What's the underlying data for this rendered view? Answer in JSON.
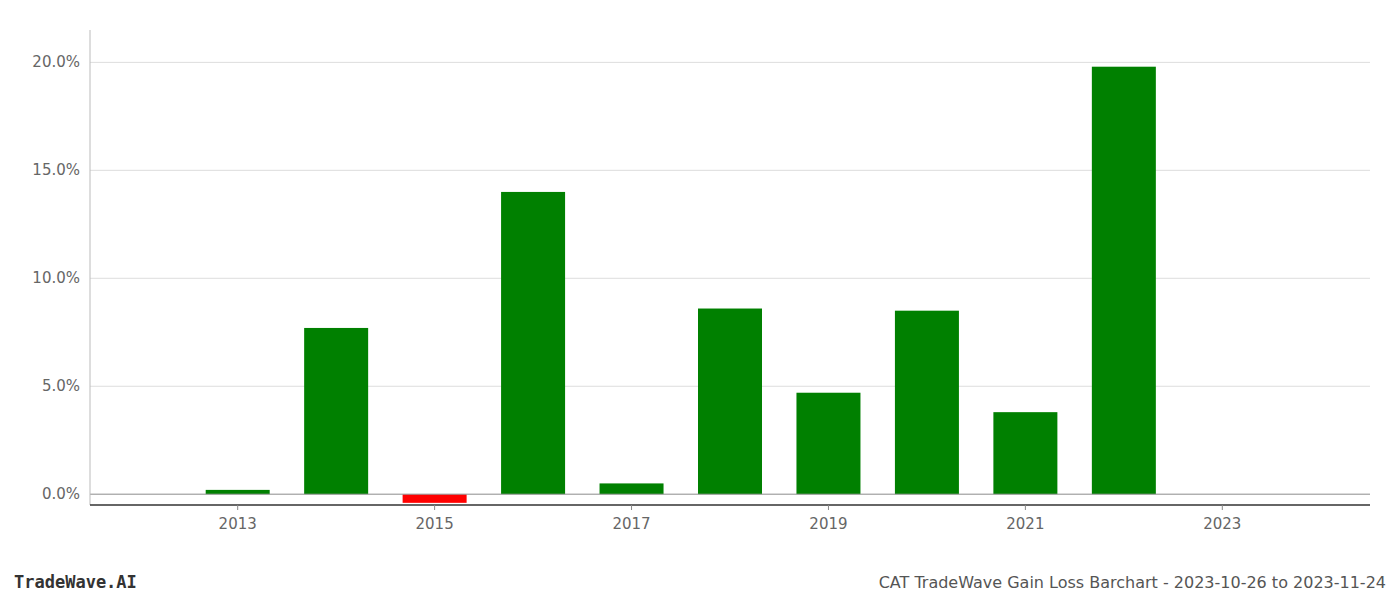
{
  "chart_data": {
    "type": "bar",
    "title": "CAT TradeWave Gain Loss Barchart - 2023-10-26 to 2023-11-24",
    "annotations": [
      "TradeWave.AI"
    ],
    "x": [
      2013,
      2014,
      2015,
      2016,
      2017,
      2018,
      2019,
      2020,
      2021,
      2022
    ],
    "values": [
      0.002,
      0.077,
      -0.004,
      0.14,
      0.005,
      0.086,
      0.047,
      0.085,
      0.038,
      0.198
    ],
    "colors": [
      "#008000",
      "#008000",
      "#ff0000",
      "#008000",
      "#008000",
      "#008000",
      "#008000",
      "#008000",
      "#008000",
      "#008000"
    ],
    "xlim": [
      2011.5,
      2024.5
    ],
    "xticks": [
      2013,
      2015,
      2017,
      2019,
      2021,
      2023
    ],
    "ylim": [
      -0.005,
      0.215
    ],
    "yticks": [
      {
        "value": 0.0,
        "label": "0.0%"
      },
      {
        "value": 0.05,
        "label": "5.0%"
      },
      {
        "value": 0.1,
        "label": "10.0%"
      },
      {
        "value": 0.15,
        "label": "15.0%"
      },
      {
        "value": 0.2,
        "label": "20.0%"
      }
    ],
    "grid": true
  }
}
